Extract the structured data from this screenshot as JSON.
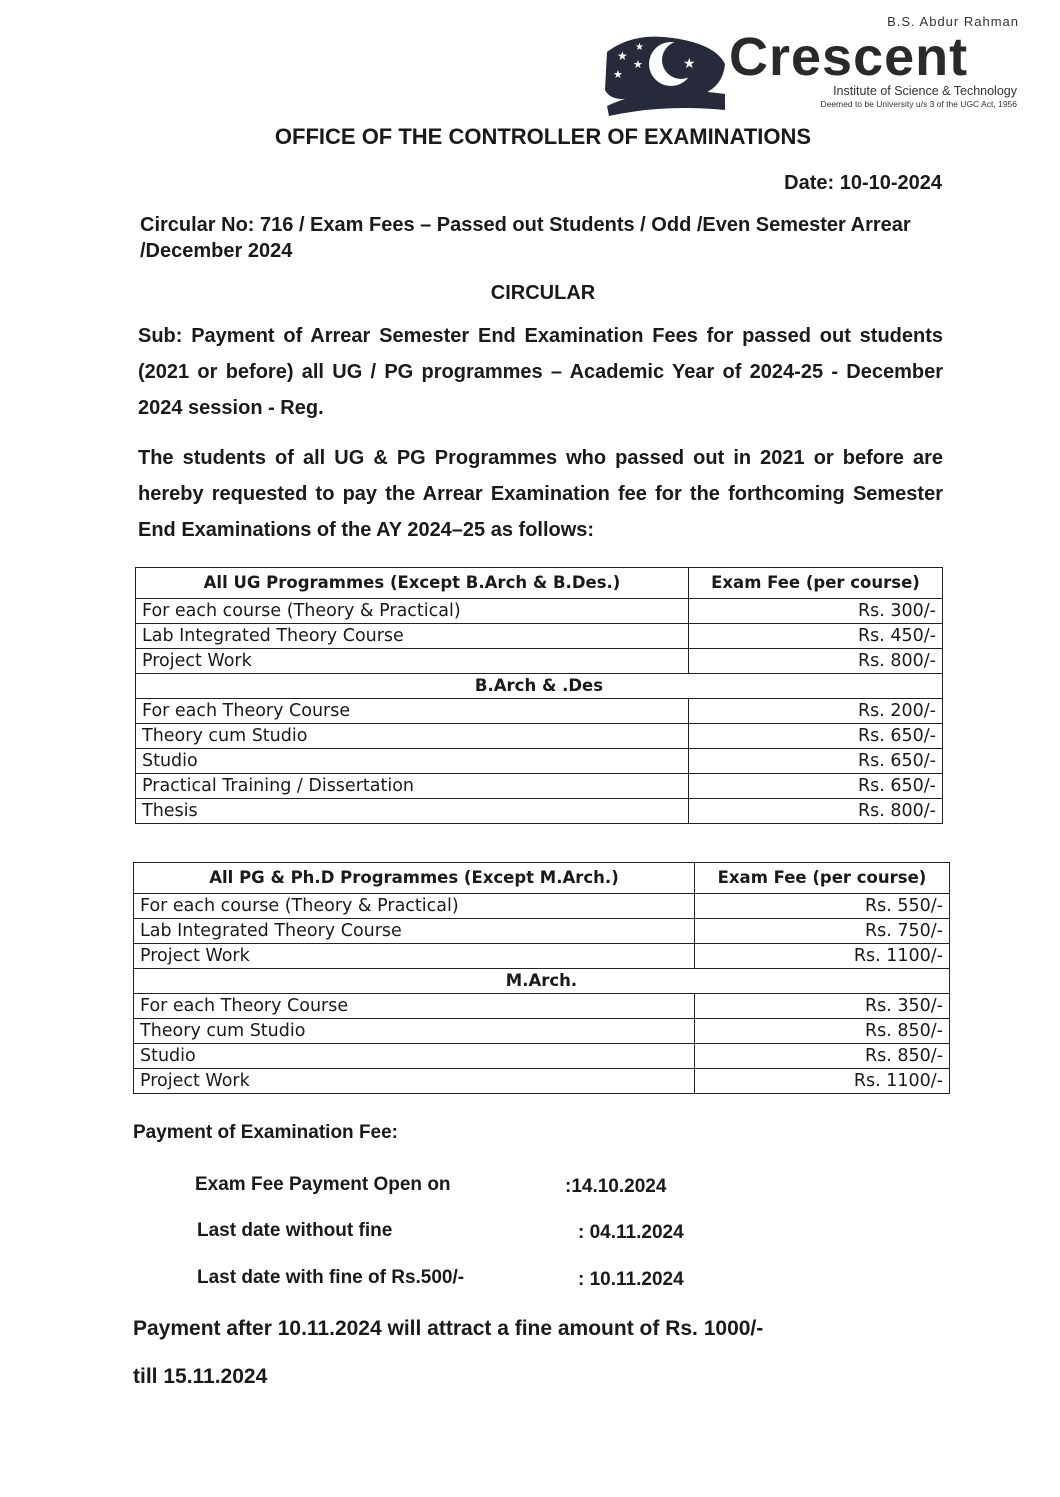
{
  "logo": {
    "top_line": "B.S. Abdur Rahman",
    "name": "Crescent",
    "line1": "Institute of Science & Technology",
    "line2": "Deemed to be University u/s 3 of the UGC Act, 1956",
    "color": "#1f2a5a"
  },
  "title": "OFFICE OF THE CONTROLLER OF EXAMINATIONS",
  "date": "Date: 10-10-2024",
  "circular_no": "Circular No: 716 / Exam Fees – Passed out Students / Odd /Even Semester Arrear /December 2024",
  "circular_heading": "CIRCULAR",
  "subject": "Sub: Payment of Arrear Semester End Examination Fees for passed out students (2021 or before) all UG / PG programmes – Academic Year of 2024-25 - December 2024 session - Reg.",
  "body": "The students of all UG & PG Programmes who passed out in 2021 or before are hereby requested to pay the Arrear Examination fee for the forthcoming Semester End Examinations of the AY 2024–25 as follows:",
  "ug_table": {
    "headers": [
      "All UG Programmes (Except B.Arch & B.Des.)",
      "Exam Fee (per course)"
    ],
    "rows": [
      {
        "course": "For each course (Theory & Practical)",
        "fee": "Rs. 300/-"
      },
      {
        "course": "Lab Integrated Theory Course",
        "fee": "Rs. 450/-"
      },
      {
        "course": "Project Work",
        "fee": "Rs. 800/-"
      }
    ],
    "section": "B.Arch & .Des",
    "section_rows": [
      {
        "course": "For each Theory Course",
        "fee": "Rs. 200/-"
      },
      {
        "course": "Theory cum Studio",
        "fee": "Rs. 650/-"
      },
      {
        "course": "Studio",
        "fee": "Rs. 650/-"
      },
      {
        "course": "Practical Training / Dissertation",
        "fee": "Rs. 650/-"
      },
      {
        "course": "Thesis",
        "fee": "Rs. 800/-"
      }
    ]
  },
  "pg_table": {
    "headers": [
      "All PG & Ph.D Programmes (Except M.Arch.)",
      "Exam Fee (per course)"
    ],
    "rows": [
      {
        "course": "For each course (Theory & Practical)",
        "fee": "Rs. 550/-"
      },
      {
        "course": "Lab Integrated Theory Course",
        "fee": "Rs. 750/-"
      },
      {
        "course": "Project Work",
        "fee": "Rs. 1100/-"
      }
    ],
    "section": "M.Arch.",
    "section_rows": [
      {
        "course": "For each Theory Course",
        "fee": "Rs. 350/-"
      },
      {
        "course": "Theory cum Studio",
        "fee": "Rs. 850/-"
      },
      {
        "course": "Studio",
        "fee": "Rs. 850/-"
      },
      {
        "course": "Project Work",
        "fee": "Rs. 1100/-"
      }
    ]
  },
  "payment": {
    "heading": "Payment of Examination Fee:",
    "items": [
      {
        "label": "Exam Fee Payment Open on",
        "value": ":14.10.2024"
      },
      {
        "label": "Last date without fine",
        "value": ": 04.11.2024"
      },
      {
        "label": "Last date with fine of Rs.500/-",
        "value": ": 10.11.2024"
      }
    ],
    "note_line1": "Payment after 10.11.2024 will attract a fine amount of Rs. 1000/-",
    "note_line2": "till 15.11.2024"
  }
}
